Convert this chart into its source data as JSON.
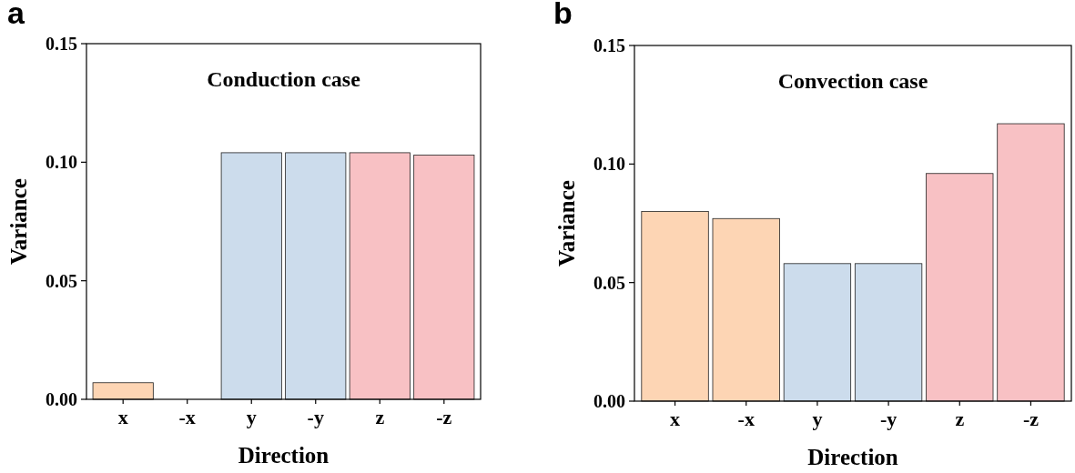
{
  "chart_data": [
    {
      "type": "bar",
      "title": "Conduction case",
      "xlabel": "Direction",
      "ylabel": "Variance",
      "annotations": [
        "a"
      ],
      "categories": [
        "x",
        "-x",
        "y",
        "-y",
        "z",
        "-z"
      ],
      "values": [
        0.007,
        0,
        0.104,
        0.104,
        0.104,
        0.103
      ],
      "colors": [
        "#fdd5b4",
        "#fdd5b4",
        "#ccdcec",
        "#ccdcec",
        "#f8c1c4",
        "#f8c1c4"
      ],
      "ylim": [
        0,
        0.15
      ],
      "yticks": [
        {
          "value": 0,
          "label": "0.00"
        },
        {
          "value": 0.05,
          "label": "0.05"
        },
        {
          "value": 0.1,
          "label": "0.10"
        },
        {
          "value": 0.15,
          "label": "0.15"
        }
      ]
    },
    {
      "type": "bar",
      "title": "Convection case",
      "xlabel": "Direction",
      "ylabel": "Variance",
      "annotations": [
        "b"
      ],
      "categories": [
        "x",
        "-x",
        "y",
        "-y",
        "z",
        "-z"
      ],
      "values": [
        0.08,
        0.077,
        0.058,
        0.058,
        0.096,
        0.117
      ],
      "colors": [
        "#fdd5b4",
        "#fdd5b4",
        "#ccdcec",
        "#ccdcec",
        "#f8c1c4",
        "#f8c1c4"
      ],
      "ylim": [
        0,
        0.15
      ],
      "yticks": [
        {
          "value": 0,
          "label": "0.00"
        },
        {
          "value": 0.05,
          "label": "0.05"
        },
        {
          "value": 0.1,
          "label": "0.10"
        },
        {
          "value": 0.15,
          "label": "0.15"
        }
      ]
    }
  ]
}
